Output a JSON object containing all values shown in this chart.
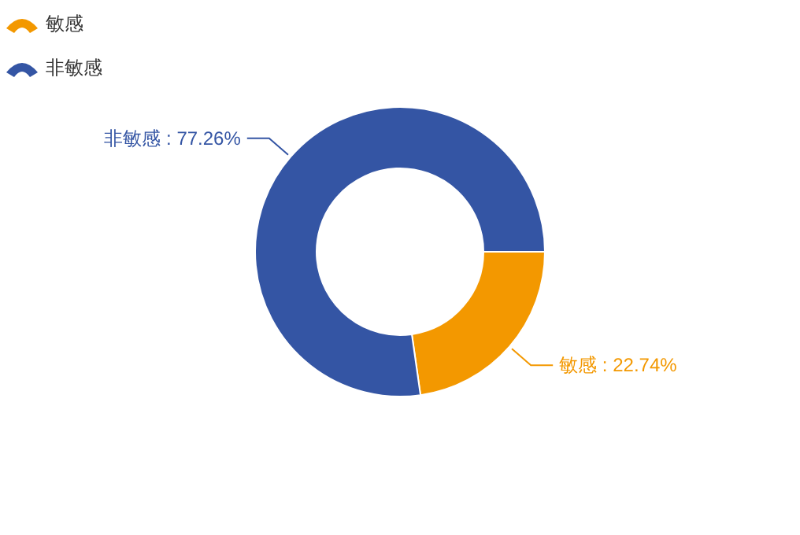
{
  "chart_data": {
    "type": "donut",
    "categories": [
      "敏感",
      "非敏感"
    ],
    "values": [
      22.74,
      77.26
    ],
    "colors": [
      "#f39800",
      "#3455a4"
    ],
    "value_labels": [
      "敏感 : 22.74%",
      "非敏感 : 77.26%"
    ],
    "legend": "top left"
  }
}
